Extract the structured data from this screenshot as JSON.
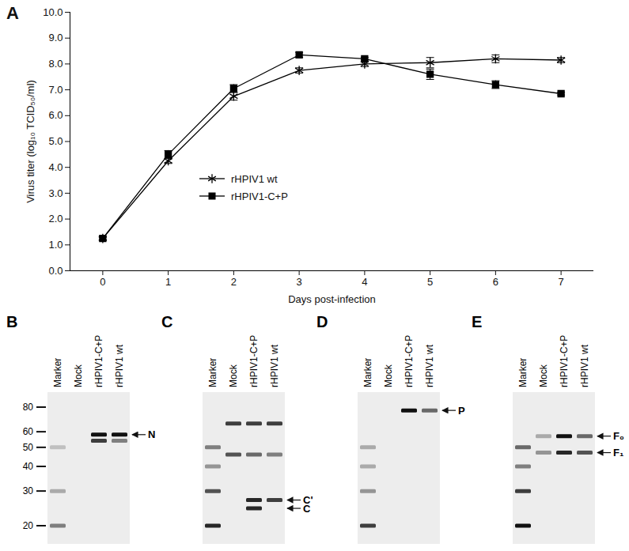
{
  "chart_data": {
    "panel": "A",
    "type": "line",
    "x": [
      0,
      1,
      2,
      3,
      4,
      5,
      6,
      7
    ],
    "xlabel": "Days post-infection",
    "ylabel": "Virus titer (log₁₀ TCID₅₀/ml)",
    "xlim": [
      -0.5,
      7.5
    ],
    "xticks": [
      0,
      1,
      2,
      3,
      4,
      5,
      6,
      7
    ],
    "ylim": [
      0,
      10
    ],
    "yticks": [
      {
        "value": 0,
        "label": "0.0"
      },
      {
        "value": 1,
        "label": "1.0"
      },
      {
        "value": 2,
        "label": "2.0"
      },
      {
        "value": 3,
        "label": "3.0"
      },
      {
        "value": 4,
        "label": "4.0"
      },
      {
        "value": 5,
        "label": "5.0"
      },
      {
        "value": 6,
        "label": "6.0"
      },
      {
        "value": 7,
        "label": "7.0"
      },
      {
        "value": 8,
        "label": "8.0"
      },
      {
        "value": 9,
        "label": "9.0"
      },
      {
        "value": 10,
        "label": "10.0"
      }
    ],
    "grid": false,
    "legend": "left",
    "series": [
      {
        "name": "rHPIV1 wt",
        "color": "#000000",
        "marker": "asterisk",
        "line_style": "solid",
        "values": [
          1.25,
          4.25,
          6.75,
          7.75,
          8.0,
          8.05,
          8.2,
          8.15
        ],
        "errors": [
          0.05,
          0.1,
          0.15,
          0.1,
          0.1,
          0.2,
          0.15,
          0.1
        ]
      },
      {
        "name": "rHPIV1-C+P",
        "color": "#000000",
        "marker": "square",
        "line_style": "solid",
        "values": [
          1.25,
          4.5,
          7.05,
          8.35,
          8.2,
          7.6,
          7.2,
          6.85
        ],
        "errors": [
          0.05,
          0.15,
          0.15,
          0.1,
          0.05,
          0.2,
          0.15,
          0.05
        ]
      }
    ]
  },
  "blots": [
    {
      "panel": "B",
      "lanes": [
        "Marker",
        "Mock",
        "rHPIV1-C+P",
        "rHPIV1 wt"
      ],
      "size_marks": [
        80,
        60,
        50,
        40,
        30,
        20
      ],
      "bands": [
        {
          "lane": "Marker",
          "kda": 50,
          "intensity": 0.2
        },
        {
          "lane": "Marker",
          "kda": 30,
          "intensity": 0.3
        },
        {
          "lane": "Marker",
          "kda": 20,
          "intensity": 0.5
        },
        {
          "lane": "rHPIV1-C+P",
          "kda": 58,
          "intensity": 1.0
        },
        {
          "lane": "rHPIV1-C+P",
          "kda": 54,
          "intensity": 0.8
        },
        {
          "lane": "rHPIV1 wt",
          "kda": 58,
          "intensity": 1.0
        },
        {
          "lane": "rHPIV1 wt",
          "kda": 54,
          "intensity": 0.5
        }
      ],
      "arrows": [
        {
          "label": "N",
          "kda": 58
        }
      ]
    },
    {
      "panel": "C",
      "lanes": [
        "Marker",
        "Mock",
        "rHPIV1-C+P",
        "rHPIV1 wt"
      ],
      "bands": [
        {
          "lane": "Marker",
          "kda": 50,
          "intensity": 0.5
        },
        {
          "lane": "Marker",
          "kda": 40,
          "intensity": 0.4
        },
        {
          "lane": "Marker",
          "kda": 30,
          "intensity": 0.7
        },
        {
          "lane": "Marker",
          "kda": 20,
          "intensity": 0.9
        },
        {
          "lane": "Mock",
          "kda": 66,
          "intensity": 0.8
        },
        {
          "lane": "Mock",
          "kda": 46,
          "intensity": 0.7
        },
        {
          "lane": "rHPIV1-C+P",
          "kda": 66,
          "intensity": 0.8
        },
        {
          "lane": "rHPIV1-C+P",
          "kda": 46,
          "intensity": 0.6
        },
        {
          "lane": "rHPIV1-C+P",
          "kda": 27,
          "intensity": 0.9
        },
        {
          "lane": "rHPIV1-C+P",
          "kda": 24.5,
          "intensity": 0.9
        },
        {
          "lane": "rHPIV1 wt",
          "kda": 66,
          "intensity": 0.8
        },
        {
          "lane": "rHPIV1 wt",
          "kda": 46,
          "intensity": 0.5
        },
        {
          "lane": "rHPIV1 wt",
          "kda": 27,
          "intensity": 0.8
        }
      ],
      "arrows": [
        {
          "label": "C'",
          "kda": 27
        },
        {
          "label": "C",
          "kda": 24.5
        }
      ]
    },
    {
      "panel": "D",
      "lanes": [
        "Marker",
        "Mock",
        "rHPIV1-C+P",
        "rHPIV1 wt"
      ],
      "bands": [
        {
          "lane": "Marker",
          "kda": 50,
          "intensity": 0.3
        },
        {
          "lane": "Marker",
          "kda": 40,
          "intensity": 0.3
        },
        {
          "lane": "Marker",
          "kda": 30,
          "intensity": 0.4
        },
        {
          "lane": "Marker",
          "kda": 20,
          "intensity": 0.8
        },
        {
          "lane": "rHPIV1-C+P",
          "kda": 77,
          "intensity": 1.0
        },
        {
          "lane": "rHPIV1 wt",
          "kda": 77,
          "intensity": 0.6
        }
      ],
      "arrows": [
        {
          "label": "P",
          "kda": 77
        }
      ]
    },
    {
      "panel": "E",
      "lanes": [
        "Marker",
        "Mock",
        "rHPIV1-C+P",
        "rHPIV1 wt"
      ],
      "bands": [
        {
          "lane": "Marker",
          "kda": 50,
          "intensity": 0.6
        },
        {
          "lane": "Marker",
          "kda": 40,
          "intensity": 0.5
        },
        {
          "lane": "Marker",
          "kda": 30,
          "intensity": 0.8
        },
        {
          "lane": "Marker",
          "kda": 20,
          "intensity": 1.0
        },
        {
          "lane": "Mock",
          "kda": 57,
          "intensity": 0.3
        },
        {
          "lane": "Mock",
          "kda": 47,
          "intensity": 0.4
        },
        {
          "lane": "rHPIV1-C+P",
          "kda": 57,
          "intensity": 1.0
        },
        {
          "lane": "rHPIV1-C+P",
          "kda": 47,
          "intensity": 0.9
        },
        {
          "lane": "rHPIV1 wt",
          "kda": 57,
          "intensity": 0.6
        },
        {
          "lane": "rHPIV1 wt",
          "kda": 47,
          "intensity": 0.7
        }
      ],
      "arrows": [
        {
          "label": "F₀",
          "kda": 57
        },
        {
          "label": "F₁",
          "kda": 47
        }
      ]
    }
  ]
}
